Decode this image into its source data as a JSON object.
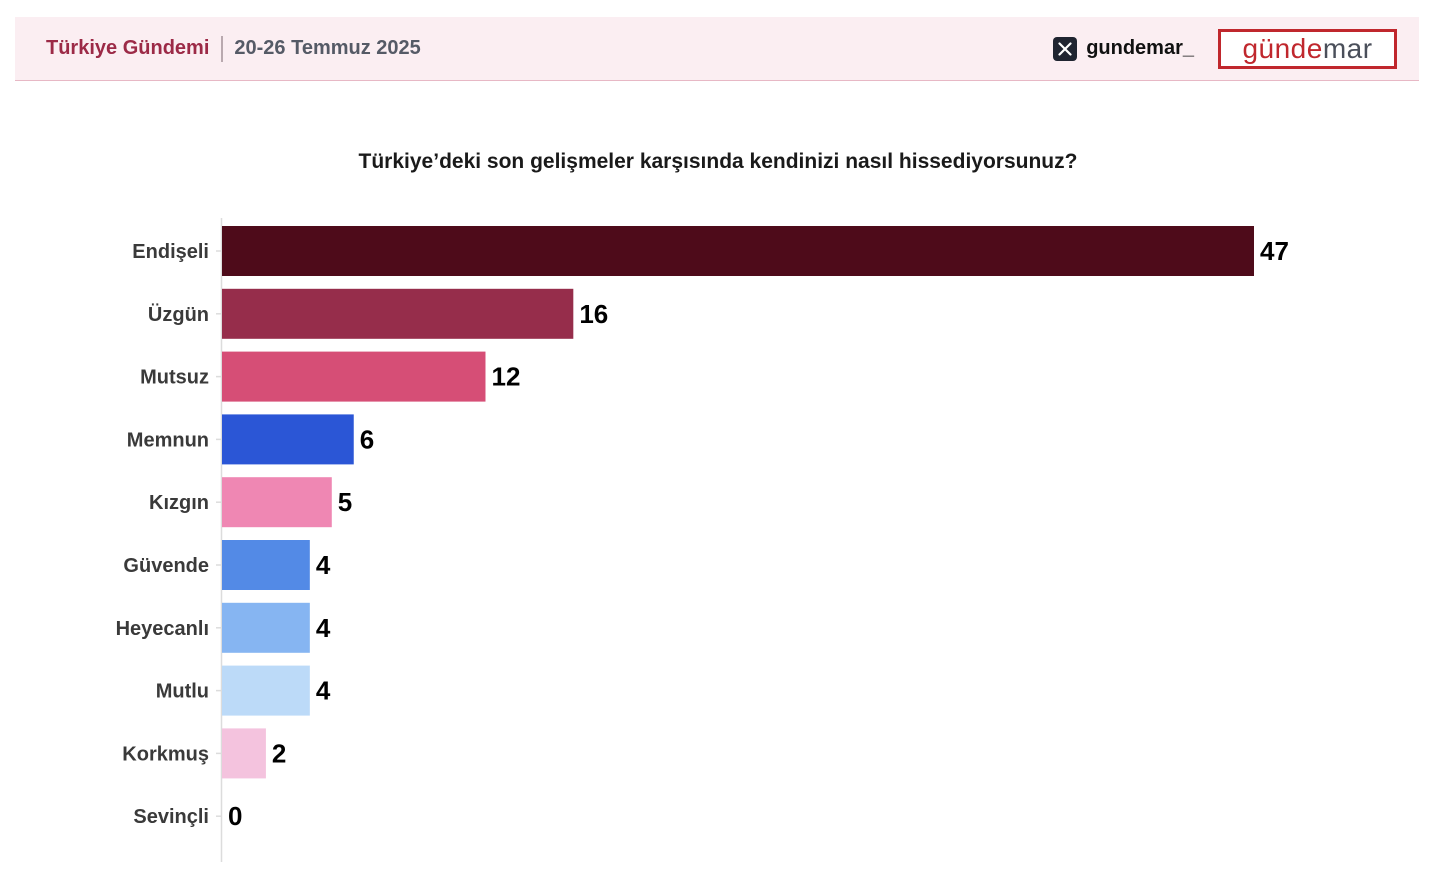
{
  "header": {
    "brand_name": "Türkiye Gündemi",
    "date_range": "20-26 Temmuz 2025",
    "social_icon": "x-icon",
    "social_handle": "gundemar_",
    "logo_part1": "günde",
    "logo_part2": "mar"
  },
  "colors": {
    "header_bg": "#fbeef2",
    "logo_red": "#c0272d",
    "brand_text": "#9c2a47"
  },
  "chart_data": {
    "type": "bar",
    "orientation": "horizontal",
    "title": "Türkiye’deki son gelişmeler karşısında kendinizi nasıl hissediyorsunuz?",
    "categories": [
      "Endişeli",
      "Üzgün",
      "Mutsuz",
      "Memnun",
      "Kızgın",
      "Güvende",
      "Heyecanlı",
      "Mutlu",
      "Korkmuş",
      "Sevinçli"
    ],
    "values": [
      47,
      16,
      12,
      6,
      5,
      4,
      4,
      4,
      2,
      0
    ],
    "colors": [
      "#4e0b1a",
      "#962d4b",
      "#d64e76",
      "#2b56d6",
      "#ef87b3",
      "#538ae6",
      "#86b5f2",
      "#bcdaf8",
      "#f4c3de",
      "#f4c3de"
    ],
    "xlim": [
      0,
      47
    ],
    "grid": false,
    "legend": "none"
  }
}
